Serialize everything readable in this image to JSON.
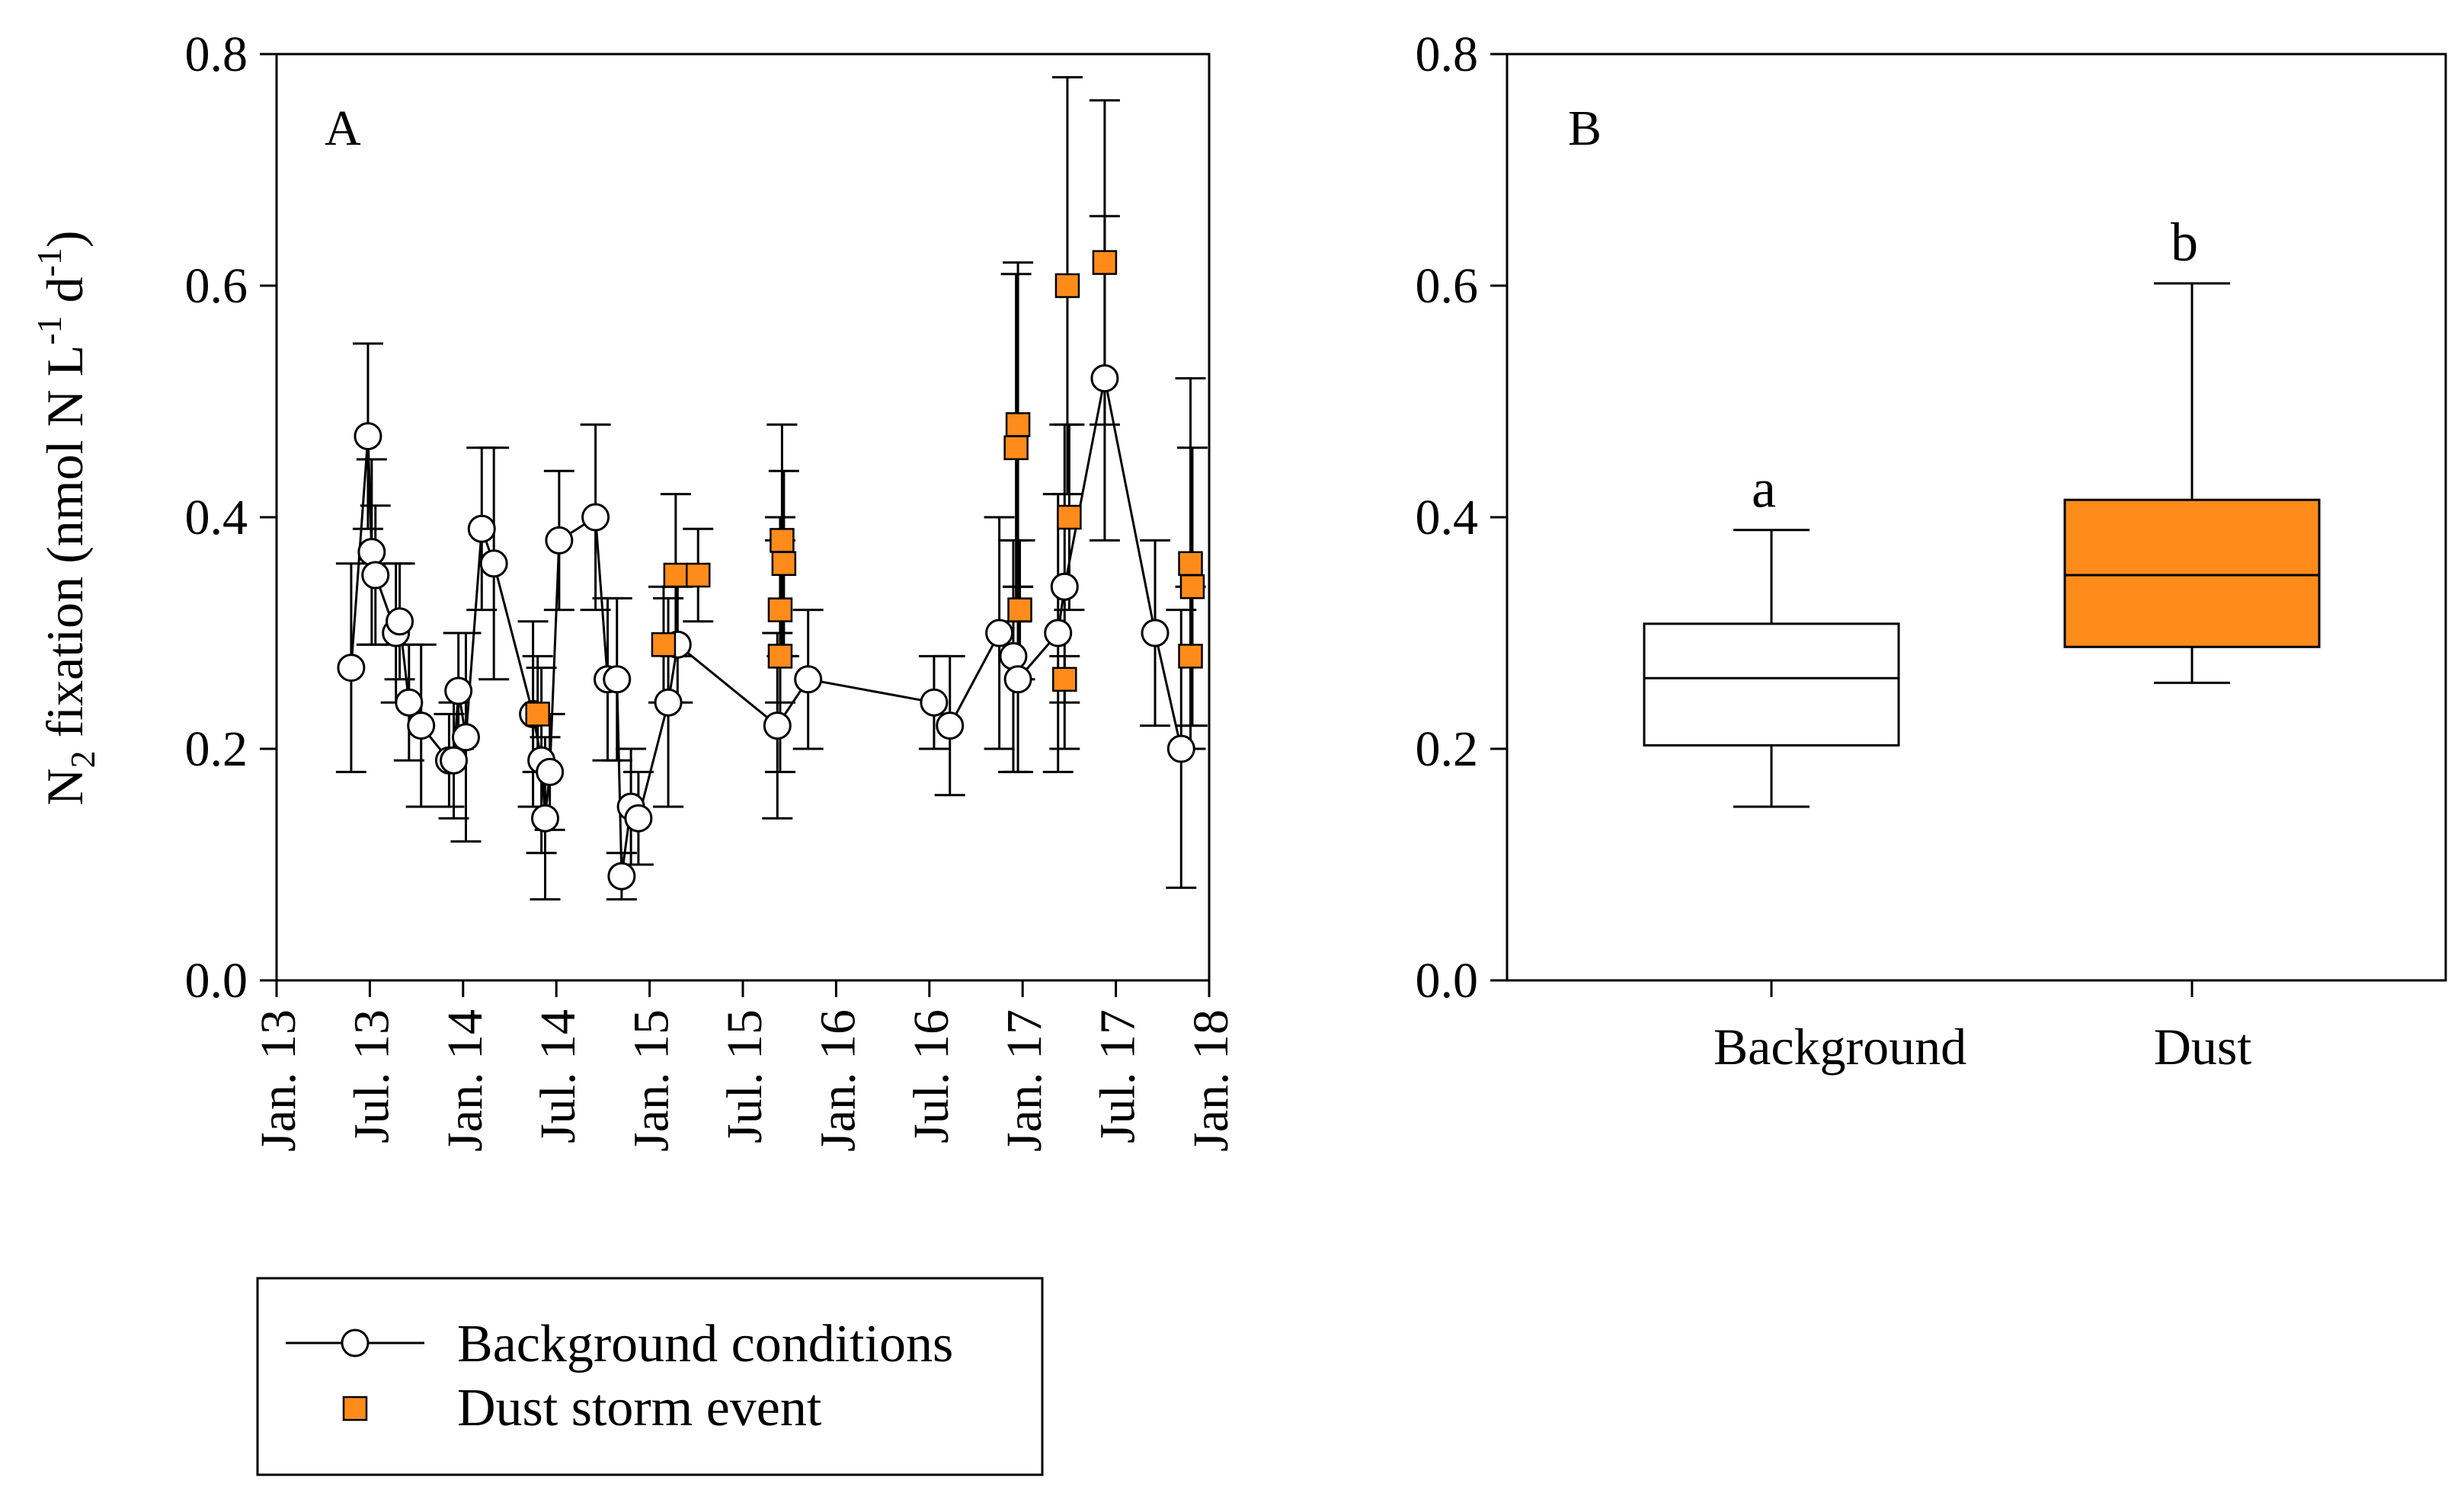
{
  "chart_data": [
    {
      "type": "scatter",
      "panel_label": "A",
      "ylabel": {
        "prefix": "N",
        "sub": "2",
        "mid": " fixation (nmol N L",
        "sup1": "-1",
        "mid2": " d",
        "sup2": "-1",
        "suffix": ")"
      },
      "ylim": [
        0,
        0.8
      ],
      "yticks": [
        "0.0",
        "0.2",
        "0.4",
        "0.6",
        "0.8"
      ],
      "xlim": [
        0,
        10
      ],
      "xticks": [
        "Jan. 13",
        "Jul. 13",
        "Jan. 14",
        "Jul. 14",
        "Jan. 15",
        "Jul. 15",
        "Jan. 16",
        "Jul. 16",
        "Jan. 17",
        "Jul. 17",
        "Jan. 18"
      ],
      "grid": false,
      "legend_position": "bottom-left, below plot",
      "series": [
        {
          "name": "Background conditions",
          "marker": "circle",
          "line": true,
          "color": "#ffffff",
          "points": [
            {
              "x": 0.8,
              "y": 0.27,
              "err": 0.09
            },
            {
              "x": 0.98,
              "y": 0.47,
              "err": 0.08
            },
            {
              "x": 1.02,
              "y": 0.37,
              "err": 0.08
            },
            {
              "x": 1.06,
              "y": 0.35,
              "err": 0.06
            },
            {
              "x": 1.28,
              "y": 0.3,
              "err": 0.06
            },
            {
              "x": 1.32,
              "y": 0.31,
              "err": 0.05
            },
            {
              "x": 1.42,
              "y": 0.24,
              "err": 0.05
            },
            {
              "x": 1.55,
              "y": 0.22,
              "err": 0.07
            },
            {
              "x": 1.85,
              "y": 0.19,
              "err": 0.04
            },
            {
              "x": 1.9,
              "y": 0.19,
              "err": 0.05
            },
            {
              "x": 1.95,
              "y": 0.25,
              "err": 0.05
            },
            {
              "x": 2.03,
              "y": 0.21,
              "err": 0.09
            },
            {
              "x": 2.2,
              "y": 0.39,
              "err": 0.07
            },
            {
              "x": 2.33,
              "y": 0.36,
              "err": 0.1
            },
            {
              "x": 2.75,
              "y": 0.23,
              "err": 0.08
            },
            {
              "x": 2.84,
              "y": 0.19,
              "err": 0.08
            },
            {
              "x": 2.88,
              "y": 0.14,
              "err": 0.07
            },
            {
              "x": 2.93,
              "y": 0.18,
              "err": 0.05
            },
            {
              "x": 3.03,
              "y": 0.38,
              "err": 0.06
            },
            {
              "x": 3.42,
              "y": 0.4,
              "err": 0.08
            },
            {
              "x": 3.55,
              "y": 0.26,
              "err": 0.07
            },
            {
              "x": 3.65,
              "y": 0.26,
              "err": 0.07
            },
            {
              "x": 3.7,
              "y": 0.09,
              "err": 0.02
            },
            {
              "x": 3.8,
              "y": 0.15,
              "err": 0.05
            },
            {
              "x": 3.88,
              "y": 0.14,
              "err": 0.04
            },
            {
              "x": 4.2,
              "y": 0.24,
              "err": 0.09
            },
            {
              "x": 4.3,
              "y": 0.29,
              "err": 0.05
            },
            {
              "x": 5.37,
              "y": 0.22,
              "err": 0.08
            },
            {
              "x": 5.7,
              "y": 0.26,
              "err": 0.06
            },
            {
              "x": 7.05,
              "y": 0.24,
              "err": 0.04
            },
            {
              "x": 7.22,
              "y": 0.22,
              "err": 0.06
            },
            {
              "x": 7.75,
              "y": 0.3,
              "err": 0.1
            },
            {
              "x": 7.9,
              "y": 0.28,
              "err": 0.1
            },
            {
              "x": 7.95,
              "y": 0.26,
              "err": 0.08
            },
            {
              "x": 8.38,
              "y": 0.3,
              "err": 0.12
            },
            {
              "x": 8.45,
              "y": 0.34,
              "err": 0.14
            },
            {
              "x": 8.88,
              "y": 0.52,
              "err": 0.14
            },
            {
              "x": 9.42,
              "y": 0.3,
              "err": 0.08
            },
            {
              "x": 9.7,
              "y": 0.2,
              "err": 0.12
            }
          ]
        },
        {
          "name": "Dust storm event",
          "marker": "square",
          "line": false,
          "color": "#ff8c1a",
          "points": [
            {
              "x": 2.8,
              "y": 0.23,
              "err": 0.05
            },
            {
              "x": 4.15,
              "y": 0.29,
              "err": 0.05
            },
            {
              "x": 4.28,
              "y": 0.35,
              "err": 0.07
            },
            {
              "x": 4.52,
              "y": 0.35,
              "err": 0.04
            },
            {
              "x": 5.42,
              "y": 0.38,
              "err": 0.1
            },
            {
              "x": 5.44,
              "y": 0.36,
              "err": 0.08
            },
            {
              "x": 5.4,
              "y": 0.32,
              "err": 0.08
            },
            {
              "x": 5.4,
              "y": 0.28,
              "err": 0.1
            },
            {
              "x": 7.95,
              "y": 0.48,
              "err": 0.14
            },
            {
              "x": 7.93,
              "y": 0.46,
              "err": 0.15
            },
            {
              "x": 7.97,
              "y": 0.32,
              "err": 0.06
            },
            {
              "x": 8.45,
              "y": 0.26,
              "err": 0.02
            },
            {
              "x": 8.48,
              "y": 0.6,
              "err": 0.18
            },
            {
              "x": 8.5,
              "y": 0.4,
              "err": 0.08
            },
            {
              "x": 8.88,
              "y": 0.62,
              "err": 0.14
            },
            {
              "x": 9.8,
              "y": 0.36,
              "err": 0.16
            },
            {
              "x": 9.82,
              "y": 0.34,
              "err": 0.12
            },
            {
              "x": 9.8,
              "y": 0.28,
              "err": 0.06
            }
          ]
        }
      ]
    },
    {
      "type": "box",
      "panel_label": "B",
      "ylim": [
        0,
        0.8
      ],
      "yticks": [
        "0.0",
        "0.2",
        "0.4",
        "0.6",
        "0.8"
      ],
      "categories": [
        "Background",
        "Dust"
      ],
      "grid": false,
      "boxes": [
        {
          "name": "Background",
          "min": 0.15,
          "q1": 0.203,
          "median": 0.261,
          "q3": 0.308,
          "max": 0.389,
          "fill": "#ffffff",
          "significance": "a"
        },
        {
          "name": "Dust",
          "min": 0.257,
          "q1": 0.288,
          "median": 0.35,
          "q3": 0.415,
          "max": 0.602,
          "fill": "#ff8c1a",
          "significance": "b"
        }
      ]
    }
  ],
  "legend": {
    "items": [
      {
        "label": "Background conditions",
        "symbol": "circle-with-line"
      },
      {
        "label": "Dust storm event",
        "symbol": "square"
      }
    ]
  },
  "colors": {
    "dust": "#ff8c1a",
    "background": "#ffffff",
    "ink": "#000000"
  }
}
